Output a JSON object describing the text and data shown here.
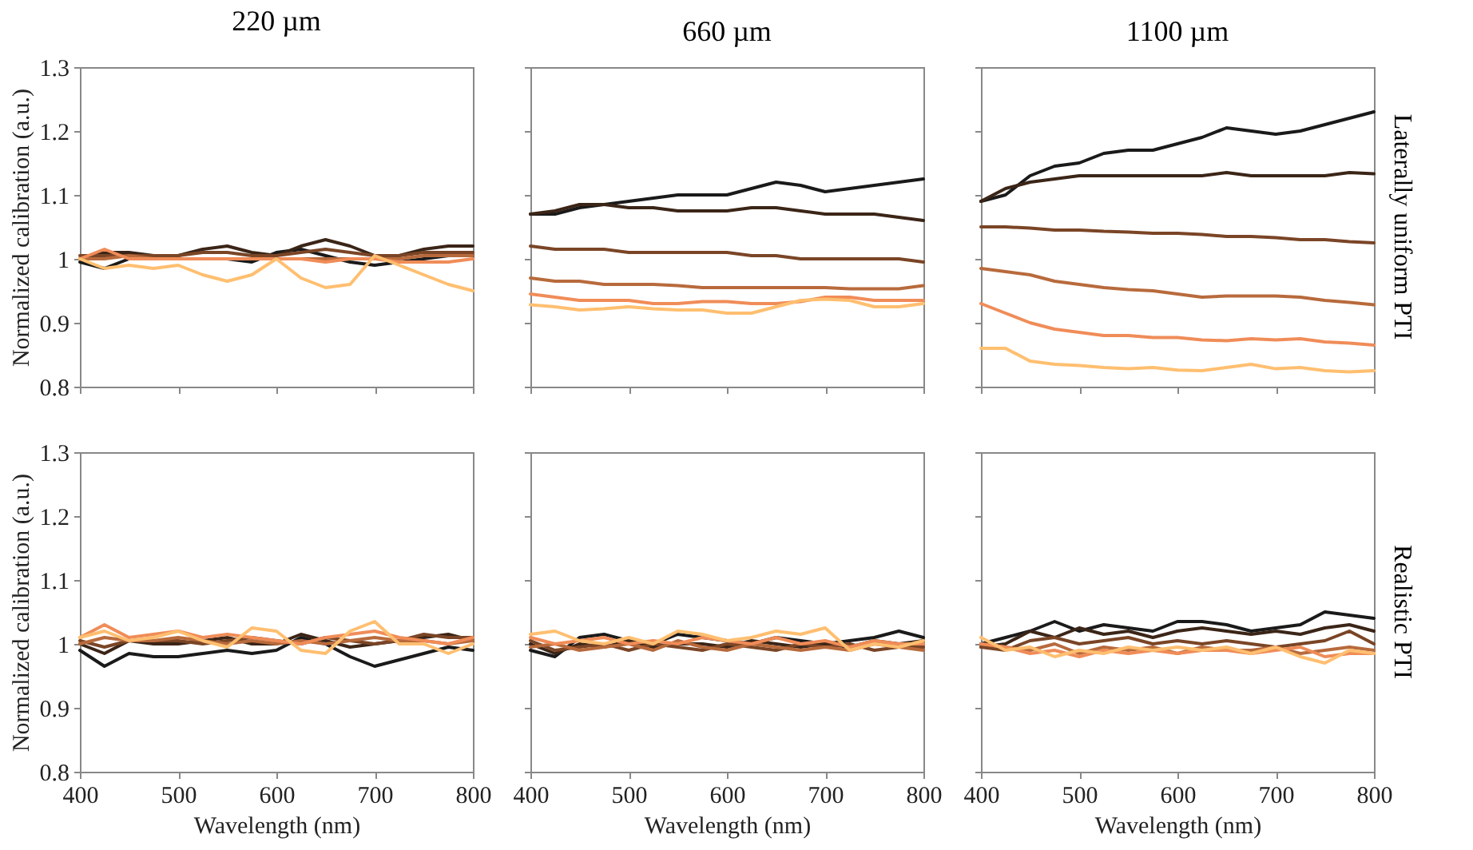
{
  "chart_data": [
    {
      "type": "line",
      "title": "220 µm",
      "ylabel": "Normalized calibration (a.u.)",
      "tick_labels": "y",
      "xlim": [
        400,
        800
      ],
      "ylim": [
        0.8,
        1.3
      ],
      "xticks": [
        400,
        500,
        600,
        700,
        800
      ],
      "yticks": [
        0.8,
        0.9,
        1,
        1.1,
        1.2,
        1.3
      ],
      "line_style": "solid",
      "x": [
        400,
        425,
        450,
        475,
        500,
        525,
        550,
        575,
        600,
        625,
        650,
        675,
        700,
        725,
        750,
        775,
        800
      ],
      "series": [
        {
          "color": "#1a1a1a",
          "values": [
            0.995,
            0.985,
            1.0,
            1.0,
            1.0,
            1.0,
            1.0,
            0.995,
            1.01,
            1.015,
            1.005,
            0.995,
            0.99,
            0.995,
            1.0,
            1.005,
            1.005
          ]
        },
        {
          "color": "#3b2517",
          "values": [
            1.0,
            1.01,
            1.01,
            1.005,
            1.005,
            1.015,
            1.02,
            1.01,
            1.005,
            1.02,
            1.03,
            1.02,
            1.005,
            1.005,
            1.015,
            1.02,
            1.02
          ]
        },
        {
          "color": "#7a4526",
          "values": [
            1.005,
            1.005,
            1.005,
            1.005,
            1.005,
            1.01,
            1.01,
            1.005,
            1.005,
            1.01,
            1.015,
            1.01,
            1.005,
            1.005,
            1.01,
            1.01,
            1.01
          ]
        },
        {
          "color": "#b86a3c",
          "values": [
            1.0,
            1.0,
            1.005,
            1.0,
            1.0,
            1.0,
            1.0,
            1.0,
            1.0,
            1.0,
            1.0,
            1.0,
            1.0,
            1.0,
            1.005,
            1.005,
            1.005
          ]
        },
        {
          "color": "#f08c58",
          "values": [
            1.0,
            1.015,
            1.0,
            1.0,
            1.0,
            1.0,
            1.0,
            1.0,
            1.0,
            1.0,
            0.995,
            1.0,
            1.0,
            0.995,
            0.995,
            0.995,
            1.0
          ]
        },
        {
          "color": "#ffbf70",
          "values": [
            1.0,
            0.985,
            0.99,
            0.985,
            0.99,
            0.975,
            0.965,
            0.975,
            1.0,
            0.97,
            0.955,
            0.96,
            1.005,
            0.99,
            0.975,
            0.96,
            0.95
          ]
        }
      ]
    },
    {
      "type": "line",
      "title": "660 µm",
      "tick_labels": false,
      "xlim": [
        400,
        800
      ],
      "ylim": [
        0.8,
        1.3
      ],
      "xticks": [
        400,
        500,
        600,
        700,
        800
      ],
      "yticks": [
        0.8,
        0.9,
        1,
        1.1,
        1.2,
        1.3
      ],
      "line_style": "solid",
      "x": [
        400,
        425,
        450,
        475,
        500,
        525,
        550,
        575,
        600,
        625,
        650,
        675,
        700,
        725,
        750,
        775,
        800
      ],
      "series": [
        {
          "color": "#1a1a1a",
          "values": [
            1.07,
            1.07,
            1.08,
            1.085,
            1.09,
            1.095,
            1.1,
            1.1,
            1.1,
            1.11,
            1.12,
            1.115,
            1.105,
            1.11,
            1.115,
            1.12,
            1.125
          ]
        },
        {
          "color": "#3b2517",
          "values": [
            1.07,
            1.075,
            1.085,
            1.085,
            1.08,
            1.08,
            1.075,
            1.075,
            1.075,
            1.08,
            1.08,
            1.075,
            1.07,
            1.07,
            1.07,
            1.065,
            1.06
          ]
        },
        {
          "color": "#7a4526",
          "values": [
            1.02,
            1.015,
            1.015,
            1.015,
            1.01,
            1.01,
            1.01,
            1.01,
            1.01,
            1.005,
            1.005,
            1.0,
            1.0,
            1.0,
            1.0,
            1.0,
            0.995
          ]
        },
        {
          "color": "#b86a3c",
          "values": [
            0.97,
            0.965,
            0.965,
            0.96,
            0.96,
            0.96,
            0.958,
            0.955,
            0.955,
            0.955,
            0.955,
            0.955,
            0.955,
            0.953,
            0.953,
            0.953,
            0.958
          ]
        },
        {
          "color": "#f08c58",
          "values": [
            0.945,
            0.94,
            0.935,
            0.935,
            0.935,
            0.93,
            0.93,
            0.933,
            0.933,
            0.93,
            0.93,
            0.933,
            0.94,
            0.94,
            0.935,
            0.935,
            0.935
          ]
        },
        {
          "color": "#ffbf70",
          "values": [
            0.928,
            0.925,
            0.92,
            0.922,
            0.925,
            0.922,
            0.92,
            0.92,
            0.915,
            0.915,
            0.925,
            0.935,
            0.937,
            0.935,
            0.925,
            0.925,
            0.93
          ]
        }
      ]
    },
    {
      "type": "line",
      "title": "1100 µm",
      "tick_labels": false,
      "annotations": [
        "Laterally uniform PTI"
      ],
      "xlim": [
        400,
        800
      ],
      "ylim": [
        0.8,
        1.3
      ],
      "xticks": [
        400,
        500,
        600,
        700,
        800
      ],
      "yticks": [
        0.8,
        0.9,
        1,
        1.1,
        1.2,
        1.3
      ],
      "line_style": "solid",
      "x": [
        400,
        425,
        450,
        475,
        500,
        525,
        550,
        575,
        600,
        625,
        650,
        675,
        700,
        725,
        750,
        775,
        800
      ],
      "series": [
        {
          "color": "#1a1a1a",
          "values": [
            1.09,
            1.1,
            1.13,
            1.145,
            1.15,
            1.165,
            1.17,
            1.17,
            1.18,
            1.19,
            1.205,
            1.2,
            1.195,
            1.2,
            1.21,
            1.22,
            1.23
          ]
        },
        {
          "color": "#3b2517",
          "values": [
            1.09,
            1.11,
            1.12,
            1.125,
            1.13,
            1.13,
            1.13,
            1.13,
            1.13,
            1.13,
            1.135,
            1.13,
            1.13,
            1.13,
            1.13,
            1.135,
            1.133
          ]
        },
        {
          "color": "#7a4526",
          "values": [
            1.05,
            1.05,
            1.048,
            1.045,
            1.045,
            1.043,
            1.042,
            1.04,
            1.04,
            1.038,
            1.035,
            1.035,
            1.033,
            1.03,
            1.03,
            1.027,
            1.025
          ]
        },
        {
          "color": "#b86a3c",
          "values": [
            0.985,
            0.98,
            0.975,
            0.965,
            0.96,
            0.955,
            0.952,
            0.95,
            0.945,
            0.94,
            0.942,
            0.942,
            0.942,
            0.94,
            0.935,
            0.932,
            0.928
          ]
        },
        {
          "color": "#f08c58",
          "values": [
            0.93,
            0.915,
            0.9,
            0.89,
            0.885,
            0.88,
            0.88,
            0.877,
            0.877,
            0.873,
            0.872,
            0.875,
            0.873,
            0.875,
            0.87,
            0.868,
            0.865
          ]
        },
        {
          "color": "#ffbf70",
          "values": [
            0.86,
            0.86,
            0.84,
            0.835,
            0.833,
            0.83,
            0.828,
            0.83,
            0.826,
            0.825,
            0.83,
            0.835,
            0.828,
            0.83,
            0.825,
            0.823,
            0.825
          ]
        }
      ]
    },
    {
      "type": "line",
      "xlabel": "Wavelength (nm)",
      "ylabel": "Normalized calibration (a.u.)",
      "xlim": [
        400,
        800
      ],
      "ylim": [
        0.8,
        1.3
      ],
      "xticks": [
        400,
        500,
        600,
        700,
        800
      ],
      "yticks": [
        0.8,
        0.9,
        1,
        1.1,
        1.2,
        1.3
      ],
      "line_style": "solid",
      "x": [
        400,
        425,
        450,
        475,
        500,
        525,
        550,
        575,
        600,
        625,
        650,
        675,
        700,
        725,
        750,
        775,
        800
      ],
      "series": [
        {
          "color": "#1a1a1a",
          "values": [
            0.99,
            0.965,
            0.985,
            0.98,
            0.98,
            0.985,
            0.99,
            0.985,
            0.99,
            1.01,
            1.0,
            0.98,
            0.965,
            0.975,
            0.985,
            0.995,
            0.99
          ]
        },
        {
          "color": "#3b2517",
          "values": [
            1.0,
            0.985,
            1.005,
            1.0,
            1.0,
            1.005,
            1.01,
            1.0,
            1.0,
            1.015,
            1.005,
            0.995,
            1.0,
            1.005,
            1.01,
            1.015,
            1.005
          ]
        },
        {
          "color": "#7a4526",
          "values": [
            1.005,
            0.995,
            1.005,
            1.005,
            1.005,
            1.0,
            1.005,
            1.01,
            1.005,
            1.0,
            1.01,
            1.005,
            1.0,
            1.005,
            1.015,
            1.01,
            1.01
          ]
        },
        {
          "color": "#b86a3c",
          "values": [
            1.0,
            1.01,
            1.005,
            1.005,
            1.01,
            1.005,
            1.0,
            1.005,
            1.0,
            1.005,
            1.0,
            1.005,
            1.01,
            1.005,
            1.005,
            1.0,
            1.005
          ]
        },
        {
          "color": "#f08c58",
          "values": [
            1.01,
            1.03,
            1.01,
            1.015,
            1.02,
            1.01,
            1.015,
            1.01,
            1.005,
            1.0,
            1.01,
            1.015,
            1.02,
            1.01,
            1.005,
            1.0,
            1.01
          ]
        },
        {
          "color": "#ffbf70",
          "values": [
            1.01,
            1.02,
            1.005,
            1.01,
            1.02,
            1.005,
            0.995,
            1.025,
            1.02,
            0.99,
            0.985,
            1.02,
            1.035,
            1.0,
            1.0,
            0.985,
            1.0
          ]
        }
      ]
    },
    {
      "type": "line",
      "xlabel": "Wavelength (nm)",
      "tick_labels": "x",
      "xlim": [
        400,
        800
      ],
      "ylim": [
        0.8,
        1.3
      ],
      "xticks": [
        400,
        500,
        600,
        700,
        800
      ],
      "yticks": [
        0.8,
        0.9,
        1,
        1.1,
        1.2,
        1.3
      ],
      "line_style": "solid",
      "x": [
        400,
        425,
        450,
        475,
        500,
        525,
        550,
        575,
        600,
        625,
        650,
        675,
        700,
        725,
        750,
        775,
        800
      ],
      "series": [
        {
          "color": "#1a1a1a",
          "values": [
            0.99,
            0.98,
            1.01,
            1.015,
            1.005,
            1.0,
            1.015,
            1.01,
            1.005,
            1.0,
            1.01,
            1.005,
            1.0,
            1.005,
            1.01,
            1.02,
            1.01
          ]
        },
        {
          "color": "#3b2517",
          "values": [
            1.0,
            0.985,
            1.0,
            0.995,
            1.005,
            0.995,
            1.0,
            1.0,
            0.995,
            1.005,
            1.0,
            0.995,
            1.0,
            0.995,
            1.005,
            1.0,
            1.005
          ]
        },
        {
          "color": "#7a4526",
          "values": [
            1.005,
            0.99,
            0.995,
            1.0,
            0.99,
            1.0,
            0.995,
            0.99,
            1.0,
            0.995,
            0.99,
            1.0,
            0.995,
            1.0,
            0.99,
            0.995,
            0.995
          ]
        },
        {
          "color": "#b86a3c",
          "values": [
            0.995,
            1.0,
            0.99,
            0.995,
            1.0,
            0.99,
            1.005,
            0.995,
            0.99,
            1.0,
            0.995,
            0.99,
            0.995,
            0.99,
            1.0,
            0.995,
            0.99
          ]
        },
        {
          "color": "#f08c58",
          "values": [
            1.01,
            1.0,
            1.005,
            1.01,
            1.0,
            1.005,
            1.0,
            1.01,
            1.005,
            1.0,
            1.01,
            1.0,
            1.005,
            0.995,
            1.005,
            1.0,
            1.0
          ]
        },
        {
          "color": "#ffbf70",
          "values": [
            1.015,
            1.02,
            1.005,
            1.0,
            1.01,
            1.0,
            1.02,
            1.015,
            1.005,
            1.01,
            1.02,
            1.015,
            1.025,
            0.99,
            1.0,
            0.995,
            1.005
          ]
        }
      ]
    },
    {
      "type": "line",
      "xlabel": "Wavelength (nm)",
      "tick_labels": "x",
      "annotations": [
        "Realistic PTI"
      ],
      "xlim": [
        400,
        800
      ],
      "ylim": [
        0.8,
        1.3
      ],
      "xticks": [
        400,
        500,
        600,
        700,
        800
      ],
      "yticks": [
        0.8,
        0.9,
        1,
        1.1,
        1.2,
        1.3
      ],
      "line_style": "solid",
      "x": [
        400,
        425,
        450,
        475,
        500,
        525,
        550,
        575,
        600,
        625,
        650,
        675,
        700,
        725,
        750,
        775,
        800
      ],
      "series": [
        {
          "color": "#1a1a1a",
          "values": [
            1.0,
            1.01,
            1.02,
            1.035,
            1.02,
            1.03,
            1.025,
            1.02,
            1.035,
            1.035,
            1.03,
            1.02,
            1.025,
            1.03,
            1.05,
            1.045,
            1.04
          ]
        },
        {
          "color": "#3b2517",
          "values": [
            0.995,
            1.0,
            1.02,
            1.01,
            1.025,
            1.015,
            1.02,
            1.01,
            1.02,
            1.025,
            1.02,
            1.015,
            1.02,
            1.015,
            1.025,
            1.03,
            1.02
          ]
        },
        {
          "color": "#7a4526",
          "values": [
            0.995,
            0.99,
            1.005,
            1.01,
            1.0,
            1.005,
            1.01,
            1.0,
            1.005,
            1.0,
            1.005,
            1.0,
            0.995,
            1.0,
            1.005,
            1.02,
            1.0
          ]
        },
        {
          "color": "#b86a3c",
          "values": [
            1.0,
            0.995,
            0.99,
            1.0,
            0.985,
            0.995,
            0.99,
            0.995,
            0.985,
            0.995,
            0.99,
            0.99,
            0.995,
            0.985,
            0.99,
            0.995,
            0.99
          ]
        },
        {
          "color": "#f08c58",
          "values": [
            1.0,
            0.995,
            0.985,
            0.99,
            0.98,
            0.99,
            0.985,
            0.99,
            0.985,
            0.99,
            0.99,
            0.985,
            0.99,
            0.995,
            0.98,
            0.985,
            0.985
          ]
        },
        {
          "color": "#ffbf70",
          "values": [
            1.01,
            0.99,
            0.995,
            0.98,
            0.99,
            0.985,
            0.995,
            0.99,
            0.995,
            0.99,
            0.995,
            0.985,
            0.995,
            0.98,
            0.97,
            0.99,
            0.985
          ]
        }
      ]
    }
  ]
}
